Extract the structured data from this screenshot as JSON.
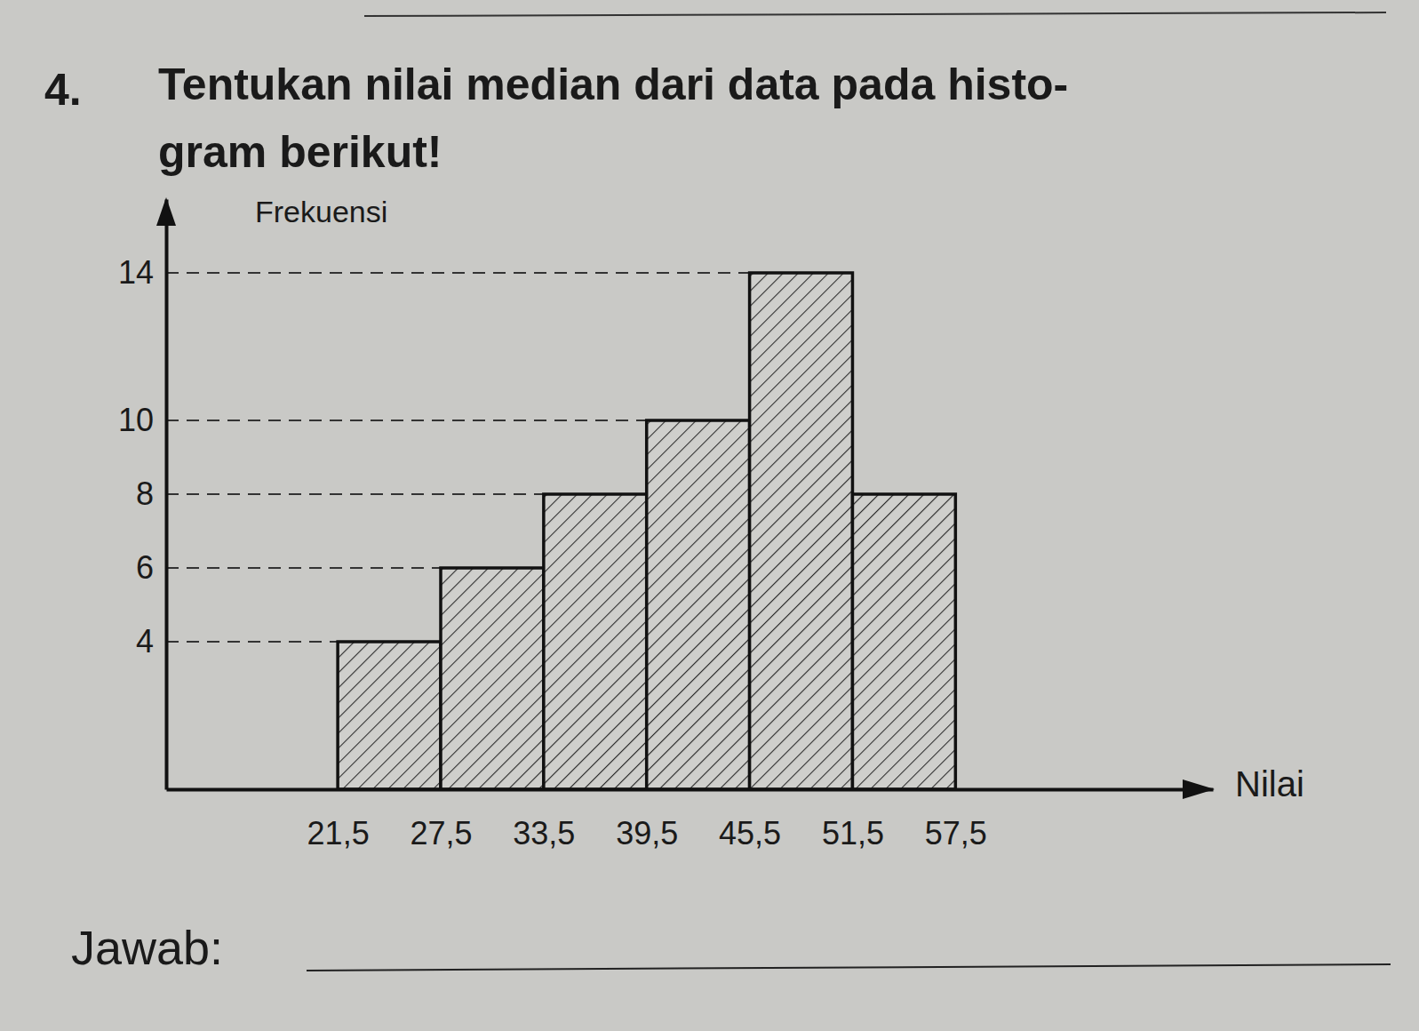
{
  "chart_data": {
    "type": "histogram",
    "title": [
      "Tentukan nilai median dari data pada histo-",
      "gram berikut!"
    ],
    "annotations": [
      "4.",
      "Jawab:"
    ],
    "y_label": "Frekuensi",
    "x_label": "Nilai",
    "bins": [
      21.5,
      27.5,
      33.5,
      39.5,
      45.5,
      51.5,
      57.5
    ],
    "values": [
      4,
      6,
      8,
      10,
      14,
      8
    ],
    "color": "#cfcfcc",
    "xlim": [
      11.5,
      72.5
    ],
    "xticks": [
      {
        "value": 21.5,
        "label": "21,5"
      },
      {
        "value": 27.5,
        "label": "27,5"
      },
      {
        "value": 33.5,
        "label": "33,5"
      },
      {
        "value": 39.5,
        "label": "39,5"
      },
      {
        "value": 45.5,
        "label": "45,5"
      },
      {
        "value": 51.5,
        "label": "51,5"
      },
      {
        "value": 57.5,
        "label": "57,5"
      }
    ],
    "ylim": [
      0,
      16
    ],
    "yticks": [
      4,
      6,
      8,
      10,
      14
    ],
    "grid": true
  }
}
